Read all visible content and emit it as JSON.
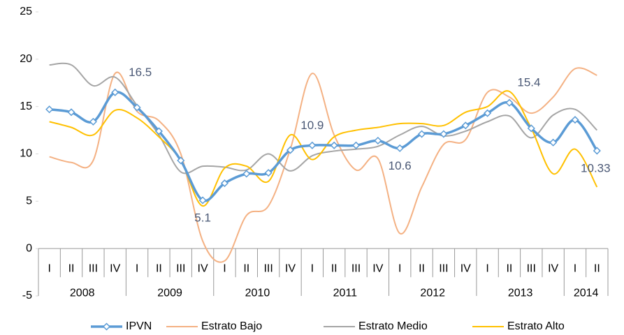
{
  "chart_data": {
    "type": "line",
    "smooth": true,
    "categories": [
      "I",
      "II",
      "III",
      "IV",
      "I",
      "II",
      "III",
      "IV",
      "I",
      "II",
      "III",
      "IV",
      "I",
      "II",
      "III",
      "IV",
      "I",
      "II",
      "III",
      "IV",
      "I",
      "II",
      "III",
      "IV",
      "I",
      "II"
    ],
    "groups": [
      {
        "label": "2008",
        "count": 4
      },
      {
        "label": "2009",
        "count": 4
      },
      {
        "label": "2010",
        "count": 4
      },
      {
        "label": "2011",
        "count": 4
      },
      {
        "label": "2012",
        "count": 4
      },
      {
        "label": "2013",
        "count": 4
      },
      {
        "label": "2014",
        "count": 2
      }
    ],
    "ylim": [
      -5,
      25
    ],
    "yticks": [
      -5,
      0,
      5,
      10,
      15,
      20,
      25
    ],
    "grid": false,
    "legend": "bottom",
    "series": [
      {
        "name": "IPVN",
        "color": "#5b9bd5",
        "marker": "diamond",
        "values": [
          14.7,
          14.4,
          13.4,
          16.5,
          14.9,
          12.4,
          9.3,
          5.1,
          6.9,
          7.9,
          8.0,
          10.4,
          10.9,
          10.9,
          10.9,
          11.4,
          10.6,
          12.1,
          12.1,
          13.0,
          14.3,
          15.4,
          12.7,
          11.2,
          13.6,
          10.33
        ],
        "value_labels": [
          null,
          null,
          null,
          "16.5",
          null,
          null,
          null,
          "5.1",
          null,
          null,
          null,
          null,
          "10.9",
          null,
          null,
          null,
          "10.6",
          null,
          null,
          null,
          null,
          "15.4",
          null,
          null,
          null,
          "10.33"
        ]
      },
      {
        "name": "Estrato Bajo",
        "color": "#f4b183",
        "values": [
          9.7,
          9.1,
          9.3,
          18.5,
          14.5,
          13.5,
          10.0,
          0.8,
          -1.3,
          3.5,
          4.5,
          10.5,
          18.5,
          12.0,
          8.3,
          9.5,
          1.6,
          6.5,
          11.0,
          11.5,
          16.5,
          16.0,
          14.3,
          16.0,
          19.0,
          18.3
        ]
      },
      {
        "name": "Estrato Medio",
        "color": "#a5a5a5",
        "values": [
          19.4,
          19.4,
          17.2,
          18.1,
          15.1,
          12.0,
          8.1,
          8.7,
          8.6,
          8.3,
          10.0,
          8.2,
          9.8,
          10.3,
          10.5,
          10.8,
          12.0,
          12.9,
          11.9,
          12.4,
          13.4,
          14.0,
          11.7,
          14.1,
          14.7,
          12.5
        ]
      },
      {
        "name": "Estrato Alto",
        "color": "#ffc000",
        "values": [
          13.4,
          12.8,
          12.0,
          14.6,
          13.8,
          11.8,
          9.3,
          4.5,
          8.5,
          8.7,
          7.1,
          12.0,
          9.4,
          11.8,
          12.5,
          12.8,
          13.2,
          13.2,
          13.0,
          14.4,
          15.0,
          16.6,
          12.7,
          7.9,
          10.5,
          6.5
        ]
      }
    ]
  }
}
